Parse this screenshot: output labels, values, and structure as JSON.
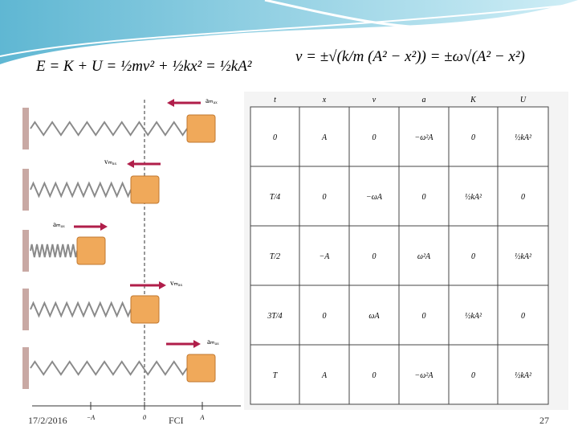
{
  "equations": {
    "energy": "E = K + U = ½mv² + ½kx² = ½kA²",
    "speed": "v = ±√(k/m (A² − x²)) = ±ω√(A² − x²)"
  },
  "figure": {
    "arrow_labels": [
      "aₘₐₓ",
      "vₘₐₓ",
      "aₘₐₓ",
      "vₘₐₓ",
      "aₘₐₓ"
    ],
    "axis_labels": [
      "−A",
      "0",
      "A"
    ]
  },
  "table": {
    "header": [
      "t",
      "x",
      "v",
      "a",
      "K",
      "U"
    ],
    "rows": [
      [
        "0",
        "A",
        "0",
        "−ω²A",
        "0",
        "½kA²"
      ],
      [
        "T/4",
        "0",
        "−ωA",
        "0",
        "½kA²",
        "0"
      ],
      [
        "T/2",
        "−A",
        "0",
        "ω²A",
        "0",
        "½kA²"
      ],
      [
        "3T/4",
        "0",
        "ωA",
        "0",
        "½kA²",
        "0"
      ],
      [
        "T",
        "A",
        "0",
        "−ω²A",
        "0",
        "½kA²"
      ]
    ]
  },
  "footer": {
    "date": "17/2/2016",
    "org": "FCI",
    "page": "27"
  }
}
